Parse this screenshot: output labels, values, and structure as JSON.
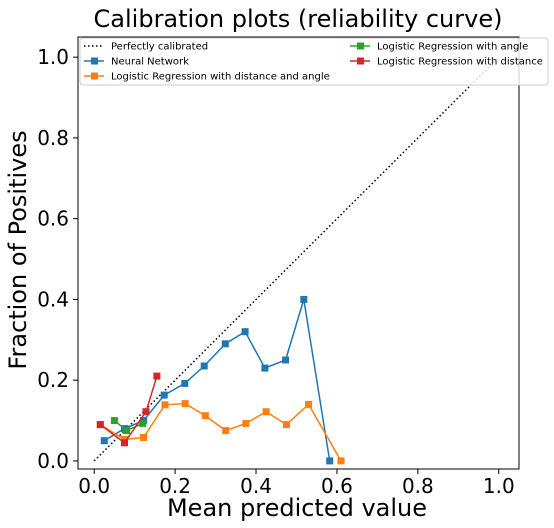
{
  "chart_data": {
    "type": "line",
    "title": "Calibration plots  (reliability curve)",
    "xlabel": "Mean predicted value",
    "ylabel": "Fraction of Positives",
    "xlim": [
      -0.04,
      1.05
    ],
    "ylim": [
      -0.02,
      1.05
    ],
    "xticks": [
      "0.0",
      "0.2",
      "0.4",
      "0.6",
      "0.8",
      "1.0"
    ],
    "yticks": [
      "0.0",
      "0.2",
      "0.4",
      "0.6",
      "0.8",
      "1.0"
    ],
    "grid": false,
    "legend_position": "top",
    "series": [
      {
        "name": "Perfectly calibrated",
        "color": "#000000",
        "style": "dotted",
        "marker": "none",
        "x": [
          0,
          1
        ],
        "y": [
          0,
          1
        ]
      },
      {
        "name": "Neural Network",
        "color": "#1f77b4",
        "style": "solid",
        "marker": "square",
        "x": [
          0.025,
          0.075,
          0.122,
          0.173,
          0.224,
          0.272,
          0.324,
          0.373,
          0.422,
          0.473,
          0.518,
          0.582
        ],
        "y": [
          0.05,
          0.08,
          0.1,
          0.163,
          0.192,
          0.235,
          0.29,
          0.32,
          0.23,
          0.25,
          0.4,
          0.0
        ]
      },
      {
        "name": "Logistic Regression with distance and angle",
        "color": "#ff7f0e",
        "style": "solid",
        "marker": "square",
        "x": [
          0.015,
          0.075,
          0.122,
          0.175,
          0.225,
          0.275,
          0.325,
          0.375,
          0.425,
          0.475,
          0.53,
          0.61
        ],
        "y": [
          0.09,
          0.053,
          0.058,
          0.139,
          0.142,
          0.112,
          0.075,
          0.093,
          0.122,
          0.09,
          0.14,
          0.0
        ]
      },
      {
        "name": "Logistic Regression with angle",
        "color": "#2ca02c",
        "style": "solid",
        "marker": "square",
        "x": [
          0.05,
          0.08,
          0.12
        ],
        "y": [
          0.1,
          0.075,
          0.093
        ]
      },
      {
        "name": "Logistic Regression with distance",
        "color": "#d62728",
        "style": "solid",
        "marker": "square",
        "x": [
          0.015,
          0.075,
          0.128,
          0.155
        ],
        "y": [
          0.09,
          0.045,
          0.122,
          0.21
        ]
      }
    ]
  }
}
